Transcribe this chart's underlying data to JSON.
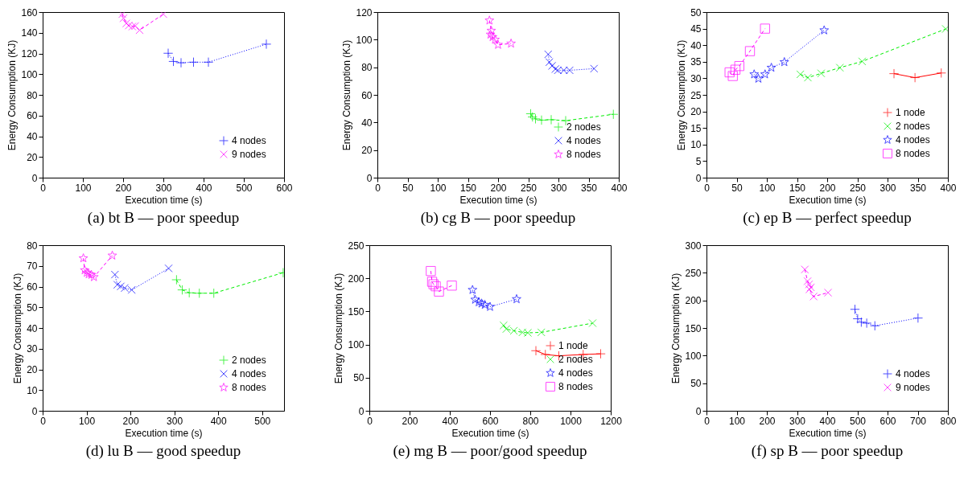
{
  "chart_data": [
    {
      "type": "line",
      "title": "(a)  bt B — poor speedup",
      "xlabel": "Execution time (s)",
      "ylabel": "Energy Consumption (KJ)",
      "xlim": [
        0,
        600
      ],
      "xticks": [
        0,
        100,
        200,
        300,
        400,
        500,
        600
      ],
      "ylim": [
        0,
        160
      ],
      "yticks": [
        0,
        20,
        40,
        60,
        80,
        100,
        120,
        140,
        160
      ],
      "legend": "bottom right",
      "series": [
        {
          "name": "4 nodes",
          "color": "#0000ff",
          "marker": "cross",
          "line_style": "dotted",
          "x": [
            312,
            325,
            344,
            375,
            412,
            556
          ],
          "values": [
            120.2,
            112.3,
            111,
            111.6,
            111.6,
            129
          ]
        },
        {
          "name": "9 nodes",
          "color": "#ff00ff",
          "marker": "x",
          "line_style": "dashed",
          "x": [
            198,
            201,
            208,
            214,
            223,
            230,
            241,
            300
          ],
          "values": [
            158,
            154,
            149,
            147,
            146,
            146.5,
            142.5,
            158
          ]
        }
      ]
    },
    {
      "type": "line",
      "title": "(b)  cg B — poor speedup",
      "xlabel": "Execution time (s)",
      "ylabel": "Energy Consumption (KJ)",
      "xlim": [
        0,
        400
      ],
      "xticks": [
        0,
        50,
        100,
        150,
        200,
        250,
        300,
        350,
        400
      ],
      "ylim": [
        0,
        120
      ],
      "yticks": [
        0,
        20,
        40,
        60,
        80,
        100,
        120
      ],
      "legend": "bottom right",
      "series": [
        {
          "name": "2 nodes",
          "color": "#00ee00",
          "marker": "cross",
          "line_style": "dashed",
          "x": [
            254,
            257,
            262,
            272,
            288,
            312,
            391
          ],
          "values": [
            46.3,
            44,
            42.6,
            41.7,
            42,
            41.3,
            45.9
          ]
        },
        {
          "name": "4 nodes",
          "color": "#0000ff",
          "marker": "x",
          "line_style": "dotted",
          "x": [
            283,
            285,
            289.5,
            295,
            299,
            309,
            318.6,
            359
          ],
          "values": [
            89.4,
            83.7,
            81,
            78.7,
            77.8,
            77.8,
            77.8,
            79
          ]
        },
        {
          "name": "8 nodes",
          "color": "#ff00ff",
          "marker": "star",
          "line_style": "dashed",
          "x": [
            185.7,
            188.8,
            187.5,
            191,
            195,
            200,
            221.5
          ],
          "values": [
            113.9,
            106.5,
            103.7,
            101.9,
            100,
            96.3,
            97.2
          ]
        }
      ]
    },
    {
      "type": "line",
      "title": "(c)  ep B — perfect speedup",
      "xlabel": "Execution time (s)",
      "ylabel": "Energy Consumption (KJ)",
      "xlim": [
        0,
        400
      ],
      "xticks": [
        0,
        50,
        100,
        150,
        200,
        250,
        300,
        350,
        400
      ],
      "ylim": [
        0,
        50
      ],
      "yticks": [
        0,
        5,
        10,
        15,
        20,
        25,
        30,
        35,
        40,
        45,
        50
      ],
      "legend": "bottom right",
      "series": [
        {
          "name": "1 node",
          "color": "#ff0000",
          "marker": "cross",
          "line_style": "solid",
          "x": [
            310.7,
            345.5,
            389
          ],
          "values": [
            31.4,
            30.2,
            31.6
          ]
        },
        {
          "name": "2 nodes",
          "color": "#00ee00",
          "marker": "x",
          "line_style": "dashed",
          "x": [
            155.6,
            168,
            190,
            221,
            258,
            396.5
          ],
          "values": [
            31.2,
            30.2,
            31.5,
            33.2,
            35.1,
            44.9
          ]
        },
        {
          "name": "4 nodes",
          "color": "#0000ff",
          "marker": "star",
          "line_style": "dotted",
          "x": [
            79,
            86,
            97,
            107.5,
            129,
            195
          ],
          "values": [
            31.2,
            29.9,
            31.2,
            33.2,
            34.9,
            44.5
          ]
        },
        {
          "name": "8 nodes",
          "color": "#ff00ff",
          "marker": "square",
          "line_style": "dashed",
          "x": [
            38.3,
            43.6,
            48,
            54.4,
            72,
            97
          ],
          "values": [
            31.8,
            30.7,
            32.6,
            33.7,
            38.2,
            45
          ]
        }
      ]
    },
    {
      "type": "line",
      "title": "(d)  lu B — good speedup",
      "xlabel": "Execution time (s)",
      "ylabel": "Energy Consumption (KJ)",
      "xlim": [
        0,
        550
      ],
      "xticks": [
        0,
        100,
        200,
        300,
        400,
        500
      ],
      "ylim": [
        0,
        80
      ],
      "yticks": [
        0,
        10,
        20,
        30,
        40,
        50,
        60,
        70,
        80
      ],
      "legend": "bottom right",
      "series": [
        {
          "name": "2 nodes",
          "color": "#00ee00",
          "marker": "cross",
          "line_style": "dashed",
          "x": [
            305,
            318,
            334,
            357,
            390,
            548
          ],
          "values": [
            63.3,
            58.4,
            57,
            56.8,
            56.8,
            66.7
          ]
        },
        {
          "name": "4 nodes",
          "color": "#0000ff",
          "marker": "x",
          "line_style": "dotted",
          "x": [
            164.7,
            170,
            178,
            187,
            203,
            287
          ],
          "values": [
            65.8,
            60.9,
            60.1,
            59.3,
            58.4,
            68.8
          ]
        },
        {
          "name": "8 nodes",
          "color": "#ff00ff",
          "marker": "star",
          "line_style": "dashed",
          "x": [
            92.8,
            95.8,
            100.6,
            105,
            111,
            116.8,
            158.7
          ],
          "values": [
            73.7,
            67.9,
            66.7,
            66,
            65.7,
            64.6,
            75
          ]
        }
      ]
    },
    {
      "type": "line",
      "title": "(e)  mg B — poor/good speedup",
      "xlabel": "Execution time (s)",
      "ylabel": "Energy Consumption (KJ)",
      "xlim": [
        0,
        1200
      ],
      "xticks": [
        0,
        200,
        400,
        600,
        800,
        1000,
        1200
      ],
      "ylim": [
        0,
        250
      ],
      "yticks": [
        0,
        50,
        100,
        150,
        200,
        250
      ],
      "legend": "bottom right",
      "series": [
        {
          "name": "1 node",
          "color": "#ff0000",
          "marker": "cross",
          "line_style": "solid",
          "x": [
            828,
            875,
            942,
            1063,
            1150
          ],
          "values": [
            90.7,
            85,
            83,
            85,
            86
          ]
        },
        {
          "name": "2 nodes",
          "color": "#00ee00",
          "marker": "x",
          "line_style": "dashed",
          "x": [
            667.6,
            681,
            718.5,
            761,
            788,
            855,
            1110
          ],
          "values": [
            129,
            123.5,
            120.8,
            118.4,
            117.7,
            118.4,
            132.3
          ]
        },
        {
          "name": "4 nodes",
          "color": "#0000ff",
          "marker": "star",
          "line_style": "dotted",
          "x": [
            513,
            526,
            544,
            558,
            574,
            600,
            732
          ],
          "values": [
            182.5,
            167.8,
            164,
            162,
            160,
            157,
            168.6
          ]
        },
        {
          "name": "8 nodes",
          "color": "#ff00ff",
          "marker": "square",
          "line_style": "dashed",
          "x": [
            305.6,
            312,
            319,
            330,
            346,
            410
          ],
          "values": [
            211,
            194.8,
            191,
            188,
            180,
            189
          ]
        }
      ]
    },
    {
      "type": "line",
      "title": "(f)  sp B — poor speedup",
      "xlabel": "Execution time (s)",
      "ylabel": "Energy Consumption (KJ)",
      "xlim": [
        0,
        800
      ],
      "xticks": [
        0,
        100,
        200,
        300,
        400,
        500,
        600,
        700,
        800
      ],
      "ylim": [
        0,
        300
      ],
      "yticks": [
        0,
        50,
        100,
        150,
        200,
        250,
        300
      ],
      "legend": "bottom right",
      "series": [
        {
          "name": "4 nodes",
          "color": "#0000ff",
          "marker": "cross",
          "line_style": "dotted",
          "x": [
            492,
            501,
            513,
            531,
            558,
            701
          ],
          "values": [
            183.8,
            166.7,
            160.6,
            158.8,
            154,
            168
          ]
        },
        {
          "name": "9 nodes",
          "color": "#ff00ff",
          "marker": "x",
          "line_style": "dashed",
          "x": [
            326,
            335,
            340,
            346,
            341,
            355,
            403
          ],
          "values": [
            256,
            234.7,
            229,
            223.6,
            220,
            207,
            214
          ]
        }
      ]
    }
  ]
}
